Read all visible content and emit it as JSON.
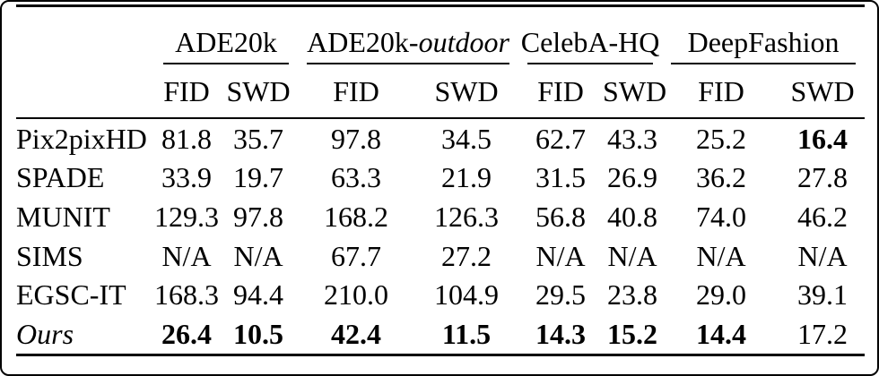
{
  "table": {
    "groups": [
      {
        "name": "ADE20k"
      },
      {
        "name_prefix": "ADE20k-",
        "name_italic": "outdoor"
      },
      {
        "name": "CelebA-HQ"
      },
      {
        "name": "DeepFashion"
      }
    ],
    "metric_headers": [
      "FID",
      "SWD",
      "FID",
      "SWD",
      "FID",
      "SWD",
      "FID",
      "SWD"
    ],
    "rows": [
      {
        "method": "Pix2pixHD",
        "cells": [
          "81.8",
          "35.7",
          "97.8",
          "34.5",
          "62.7",
          "43.3",
          "25.2",
          "16.4"
        ]
      },
      {
        "method": "SPADE",
        "cells": [
          "33.9",
          "19.7",
          "63.3",
          "21.9",
          "31.5",
          "26.9",
          "36.2",
          "27.8"
        ]
      },
      {
        "method": "MUNIT",
        "cells": [
          "129.3",
          "97.8",
          "168.2",
          "126.3",
          "56.8",
          "40.8",
          "74.0",
          "46.2"
        ]
      },
      {
        "method": "SIMS",
        "cells": [
          "N/A",
          "N/A",
          "67.7",
          "27.2",
          "N/A",
          "N/A",
          "N/A",
          "N/A"
        ]
      },
      {
        "method": "EGSC-IT",
        "cells": [
          "168.3",
          "94.4",
          "210.0",
          "104.9",
          "29.5",
          "23.8",
          "29.0",
          "39.1"
        ]
      },
      {
        "method": "Ours",
        "cells": [
          "26.4",
          "10.5",
          "42.4",
          "11.5",
          "14.3",
          "15.2",
          "14.4",
          "17.2"
        ]
      }
    ],
    "colors": {
      "text": "#000000",
      "rule": "#000000",
      "background": "#ffffff"
    }
  }
}
